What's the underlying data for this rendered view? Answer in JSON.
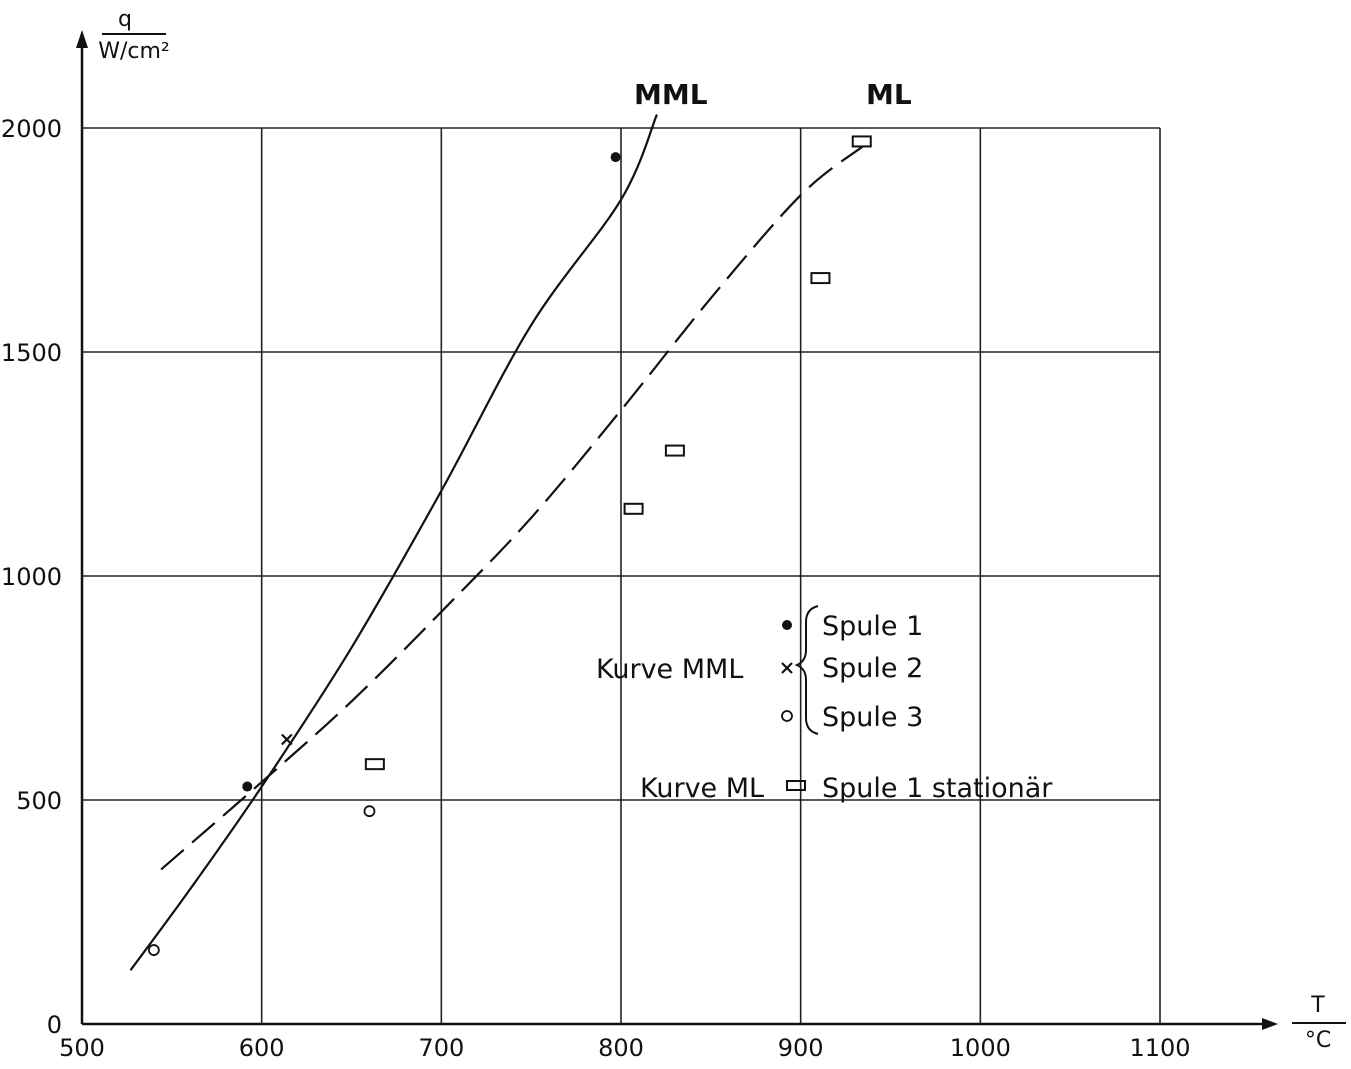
{
  "chart_data": {
    "type": "scatter",
    "title": "",
    "xlabel": "T",
    "xunit": "°C",
    "ylabel": "q",
    "yunit": "W/cm²",
    "xlim": [
      500,
      1100
    ],
    "ylim": [
      0,
      2000
    ],
    "x_ticks": [
      "500",
      "600",
      "700",
      "800",
      "900",
      "1000",
      "1100"
    ],
    "y_ticks": [
      "0",
      "500",
      "1000",
      "1500",
      "2000"
    ],
    "grid": true,
    "series": [
      {
        "name": "Spule 1",
        "marker": "filled-circle",
        "points": [
          [
            592,
            530
          ],
          [
            797,
            1935
          ]
        ]
      },
      {
        "name": "Spule 2",
        "marker": "cross",
        "points": [
          [
            614,
            635
          ]
        ]
      },
      {
        "name": "Spule 3",
        "marker": "open-circle",
        "points": [
          [
            540,
            165
          ],
          [
            660,
            475
          ]
        ]
      },
      {
        "name": "Spule 1 stationär",
        "marker": "open-rectangle",
        "points": [
          [
            663,
            580
          ],
          [
            807,
            1150
          ],
          [
            830,
            1280
          ],
          [
            911,
            1665
          ],
          [
            934,
            1970
          ]
        ]
      }
    ],
    "curves": [
      {
        "name": "MML",
        "style": "solid",
        "points": [
          [
            527,
            120
          ],
          [
            560,
            300
          ],
          [
            600,
            530
          ],
          [
            650,
            840
          ],
          [
            700,
            1190
          ],
          [
            750,
            1560
          ],
          [
            800,
            1840
          ],
          [
            820,
            2030
          ]
        ]
      },
      {
        "name": "ML",
        "style": "dashed",
        "points": [
          [
            544,
            345
          ],
          [
            600,
            540
          ],
          [
            650,
            720
          ],
          [
            700,
            920
          ],
          [
            750,
            1130
          ],
          [
            800,
            1370
          ],
          [
            850,
            1620
          ],
          [
            900,
            1850
          ],
          [
            935,
            1960
          ]
        ]
      }
    ],
    "legend": {
      "placement": "center-right",
      "group_label_mml": "Kurve MML",
      "group_label_ml": "Kurve ML",
      "entries": [
        {
          "marker": "filled-circle",
          "label": "Spule 1"
        },
        {
          "marker": "cross",
          "label": "Spule 2"
        },
        {
          "marker": "open-circle",
          "label": "Spule 3"
        },
        {
          "marker": "open-rectangle",
          "label": "Spule 1  stationär"
        }
      ]
    },
    "curve_labels": {
      "mml": "MML",
      "ml": "ML"
    }
  }
}
